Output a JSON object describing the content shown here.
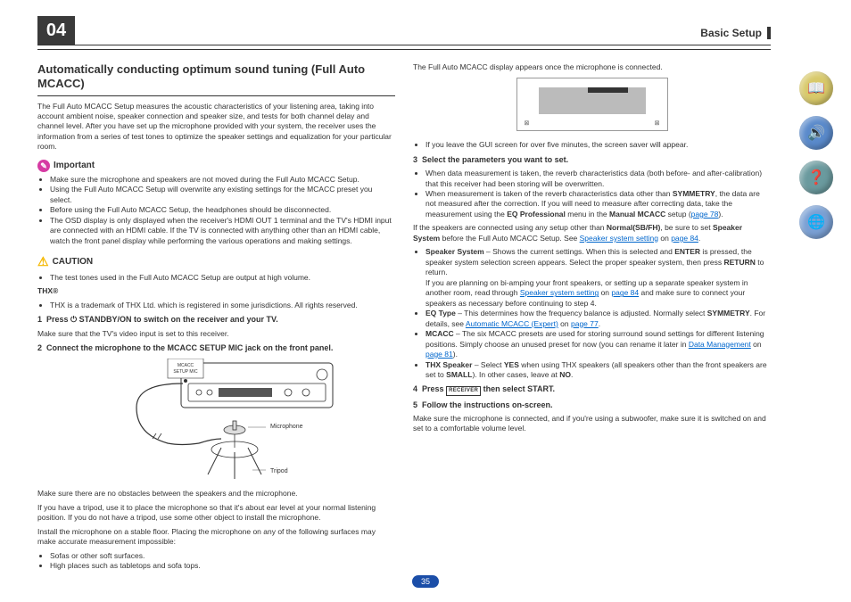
{
  "page": {
    "chapter_number": "04",
    "section_title": "Basic Setup",
    "footer_page": "35"
  },
  "side_icons": [
    {
      "name": "book-icon",
      "bg": "#d8c96a",
      "glyph": "📖"
    },
    {
      "name": "speaker-icon",
      "bg": "#5a8acb",
      "glyph": "🔊"
    },
    {
      "name": "help-icon",
      "bg": "#6a9a9e",
      "glyph": "❓"
    },
    {
      "name": "globe-icon",
      "bg": "#7aa0d4",
      "glyph": "🌐"
    }
  ],
  "left": {
    "heading": "Automatically conducting optimum sound tuning (Full Auto MCACC)",
    "intro": "The Full Auto MCACC Setup measures the acoustic characteristics of your listening area, taking into account ambient noise, speaker connection and speaker size, and tests for both channel delay and channel level. After you have set up the microphone provided with your system, the receiver uses the information from a series of test tones to optimize the speaker settings and equalization for your particular room.",
    "important_label": "Important",
    "important_items": [
      "Make sure the microphone and speakers are not moved during the Full Auto MCACC Setup.",
      "Using the Full Auto MCACC Setup will overwrite any existing settings for the MCACC preset you select.",
      "Before using the Full Auto MCACC Setup, the headphones should be disconnected.",
      "The OSD display is only displayed when the receiver's HDMI OUT 1 terminal and the TV's HDMI input are connected with an HDMI cable. If the TV is connected with anything other than an HDMI cable, watch the front panel display while performing the various operations and making settings."
    ],
    "caution_label": "CAUTION",
    "caution_items": [
      "The test tones used in the Full Auto MCACC Setup are output at high volume."
    ],
    "thx_label": "THX®",
    "thx_note": "THX is a trademark of THX Ltd. which is registered in some jurisdictions. All rights reserved.",
    "step1_num": "1",
    "step1_text": "Press ⏻ STANDBY/ON to switch on the receiver and your TV.",
    "step1_note": "Make sure that the TV's video input is set to this receiver.",
    "step2_num": "2",
    "step2_text": "Connect the microphone to the MCACC SETUP MIC jack on the front panel.",
    "diagram_labels": {
      "mic": "Microphone",
      "tripod": "Tripod",
      "jack": "MCACC\nSETUP MIC"
    },
    "post_diagram": [
      "Make sure there are no obstacles between the speakers and the microphone.",
      "If you have a tripod, use it to place the microphone so that it's about ear level at your normal listening position. If you do not have a tripod, use some other object to install the microphone.",
      "Install the microphone on a stable floor. Placing the microphone on any of the following surfaces may make accurate measurement impossible:"
    ],
    "surface_items": [
      "Sofas or other soft surfaces.",
      "High places such as tabletops and sofa tops."
    ]
  },
  "right": {
    "intro": "The Full Auto MCACC display appears once the microphone is connected.",
    "screensaver_note": "If you leave the GUI screen for over five minutes, the screen saver will appear.",
    "step3_num": "3",
    "step3_text": "Select the parameters you want to set.",
    "step3_items": [
      "When data measurement is taken, the reverb characteristics data (both before- and after-calibration) that this receiver had been storing will be overwritten."
    ],
    "step3_item2_a": "When measurement is taken of the reverb characteristics data other than ",
    "step3_item2_sym": "SYMMETRY",
    "step3_item2_b": ", the data are not measured after the correction. If you will need to measure after correcting data, take the measurement using the ",
    "step3_item2_eq": "EQ Professional",
    "step3_item2_c": " menu in the ",
    "step3_item2_manual": "Manual MCACC",
    "step3_item2_d": " setup (",
    "step3_item2_link": "page 78",
    "step3_item2_e": ").",
    "step3_para_a": "If the speakers are connected using any setup other than ",
    "step3_para_normal": "Normal(SB/FH)",
    "step3_para_b": ", be sure to set ",
    "step3_para_ss": "Speaker System",
    "step3_para_c": " before the Full Auto MCACC Setup. See ",
    "step3_para_link": "Speaker system setting",
    "step3_para_on": " on ",
    "step3_para_pg": "page 84",
    "step3_para_d": ".",
    "bullet_sys_lbl": "Speaker System",
    "bullet_sys_a": " – Shows the current settings. When this is selected and ",
    "bullet_sys_enter": "ENTER",
    "bullet_sys_b": " is pressed, the speaker system selection screen appears. Select the proper speaker system, then press ",
    "bullet_sys_return": "RETURN",
    "bullet_sys_c": " to return.",
    "bullet_sys_p2a": "If you are planning on bi-amping your front speakers, or setting up a separate speaker system in another room, read through ",
    "bullet_sys_p2link": "Speaker system setting",
    "bullet_sys_p2on": " on ",
    "bullet_sys_p2pg": "page 84",
    "bullet_sys_p2b": " and make sure to connect your speakers as necessary before continuing to step 4.",
    "bullet_eq_lbl": "EQ Type",
    "bullet_eq_a": " – This determines how the frequency balance is adjusted. Normally select ",
    "bullet_eq_sym": "SYMMETRY",
    "bullet_eq_b": ". For details, see ",
    "bullet_eq_link": "Automatic MCACC (Expert)",
    "bullet_eq_on": " on ",
    "bullet_eq_pg": "page 77",
    "bullet_eq_c": ".",
    "bullet_mc_lbl": "MCACC",
    "bullet_mc_a": " – The six MCACC presets are used for storing surround sound settings for different listening positions. Simply choose an unused preset for now (you can rename it later in ",
    "bullet_mc_link": "Data Management",
    "bullet_mc_on": " on ",
    "bullet_mc_pg": "page 81",
    "bullet_mc_b": ").",
    "bullet_thx_lbl": "THX Speaker",
    "bullet_thx_a": " – Select ",
    "bullet_thx_yes": "YES",
    "bullet_thx_b": " when using THX speakers (all speakers other than the front speakers are set to ",
    "bullet_thx_small": "SMALL",
    "bullet_thx_c": "). In other cases, leave at ",
    "bullet_thx_no": "NO",
    "bullet_thx_d": ".",
    "step4_num": "4",
    "step4_a": "Press ",
    "step4_btn": "RECEIVER",
    "step4_b": " then select START.",
    "step5_num": "5",
    "step5_text": "Follow the instructions on-screen.",
    "step5_note": "Make sure the microphone is connected, and if you're using a subwoofer, make sure it is switched on and set to a comfortable volume level."
  },
  "colors": {
    "link": "#0066cc",
    "chapter_bg": "#3a3a3a",
    "footer_bg": "#1b4ea8"
  }
}
